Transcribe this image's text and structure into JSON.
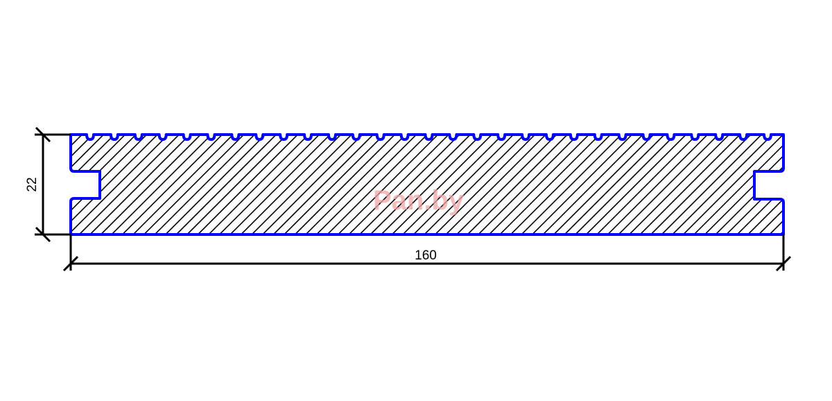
{
  "drawing": {
    "profile_outline_color": "#0000ff",
    "hatch_color": "#000000",
    "groove_count": 29,
    "dimensions": {
      "height_label": "22",
      "width_label": "160"
    },
    "watermark": "Pan.by"
  }
}
